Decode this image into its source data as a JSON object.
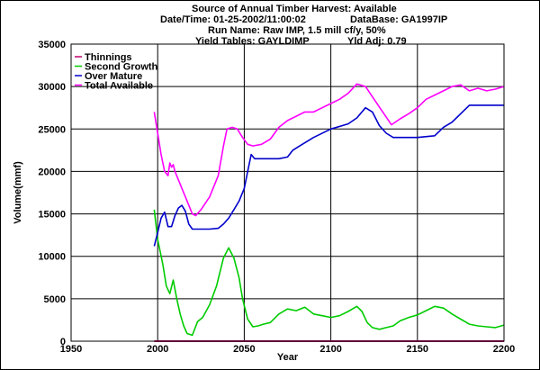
{
  "header": {
    "title": "Source of Annual Timber Harvest: Available",
    "datetime": "Date/Time: 01-25-2002/11:00:02",
    "database": "DataBase: GA1997IP",
    "run_name": "Run Name: Raw IMP, 1.5 mill cf/y, 50%",
    "yield_tables": "Yield Tables: GAYLDIMP",
    "yld_adj": "Yld Adj: 0.79"
  },
  "chart_data": {
    "type": "line",
    "xlabel": "Year",
    "ylabel": "Volume(mmf)",
    "xlim": [
      1950,
      2200
    ],
    "ylim": [
      0,
      35000
    ],
    "xticks": [
      1950,
      2000,
      2050,
      2100,
      2150,
      2200
    ],
    "yticks": [
      0,
      5000,
      10000,
      15000,
      20000,
      25000,
      30000,
      35000
    ],
    "grid": true,
    "legend_position": "top-left",
    "series": [
      {
        "name": "Thinnings",
        "color": "#c0006a",
        "x": [
          1998,
          2200
        ],
        "y": [
          0,
          0
        ]
      },
      {
        "name": "Second Growth",
        "color": "#00cc00",
        "x": [
          1998,
          2000,
          2003,
          2005,
          2007,
          2009,
          2011,
          2013,
          2015,
          2017,
          2020,
          2023,
          2026,
          2030,
          2034,
          2038,
          2041,
          2044,
          2047,
          2049,
          2052,
          2055,
          2058,
          2061,
          2065,
          2070,
          2075,
          2080,
          2085,
          2090,
          2095,
          2100,
          2105,
          2110,
          2115,
          2118,
          2121,
          2124,
          2128,
          2132,
          2136,
          2140,
          2145,
          2150,
          2155,
          2160,
          2165,
          2170,
          2175,
          2180,
          2185,
          2190,
          2195,
          2200
        ],
        "y": [
          15500,
          12000,
          9000,
          6500,
          5600,
          7200,
          5000,
          3200,
          1800,
          900,
          700,
          2300,
          2800,
          4300,
          6500,
          9800,
          11000,
          9800,
          7500,
          5000,
          2600,
          1700,
          1800,
          2000,
          2200,
          3200,
          3800,
          3600,
          4000,
          3200,
          3000,
          2800,
          3000,
          3500,
          4100,
          3500,
          2200,
          1600,
          1400,
          1600,
          1800,
          2400,
          2800,
          3100,
          3600,
          4100,
          3900,
          3200,
          2600,
          2000,
          1800,
          1700,
          1600,
          1900
        ]
      },
      {
        "name": "Over Mature",
        "color": "#0000cc",
        "x": [
          1998,
          2000,
          2002,
          2004,
          2006,
          2008,
          2010,
          2012,
          2014,
          2016,
          2018,
          2020,
          2022,
          2025,
          2030,
          2035,
          2038,
          2041,
          2044,
          2047,
          2050,
          2052,
          2054,
          2056,
          2060,
          2065,
          2070,
          2075,
          2078,
          2082,
          2090,
          2100,
          2110,
          2115,
          2120,
          2124,
          2128,
          2132,
          2136,
          2140,
          2150,
          2160,
          2165,
          2170,
          2175,
          2180,
          2190,
          2200
        ],
        "y": [
          11200,
          12800,
          14500,
          15200,
          13500,
          13500,
          14800,
          15700,
          16000,
          15300,
          13800,
          13200,
          13200,
          13200,
          13200,
          13300,
          13800,
          14500,
          15500,
          16500,
          18000,
          20000,
          22000,
          21500,
          21500,
          21500,
          21500,
          21700,
          22500,
          23000,
          24000,
          25000,
          25600,
          26300,
          27500,
          27000,
          25400,
          24500,
          24000,
          24000,
          24000,
          24200,
          25200,
          25800,
          26800,
          27800,
          27800,
          27800
        ]
      },
      {
        "name": "Total Available",
        "color": "#ff00ff",
        "x": [
          1998,
          2000,
          2002,
          2004,
          2006,
          2007,
          2008,
          2009,
          2010,
          2012,
          2014,
          2016,
          2018,
          2020,
          2022,
          2025,
          2030,
          2035,
          2038,
          2040,
          2043,
          2046,
          2049,
          2052,
          2055,
          2060,
          2065,
          2070,
          2075,
          2080,
          2085,
          2090,
          2095,
          2100,
          2105,
          2110,
          2115,
          2120,
          2125,
          2130,
          2135,
          2140,
          2145,
          2150,
          2155,
          2160,
          2165,
          2170,
          2175,
          2180,
          2185,
          2190,
          2195,
          2200
        ],
        "y": [
          27000,
          24500,
          22000,
          20000,
          19500,
          21000,
          20500,
          20800,
          20000,
          19000,
          18000,
          17000,
          16000,
          15000,
          14800,
          15500,
          17000,
          19500,
          23000,
          25000,
          25200,
          25000,
          24000,
          23200,
          23000,
          23200,
          23800,
          25200,
          26000,
          26500,
          27000,
          27000,
          27500,
          28000,
          28500,
          29200,
          30300,
          30000,
          28500,
          27000,
          25500,
          26200,
          26800,
          27500,
          28500,
          29000,
          29500,
          30000,
          30200,
          29500,
          29800,
          29500,
          29700,
          30000
        ]
      }
    ]
  }
}
